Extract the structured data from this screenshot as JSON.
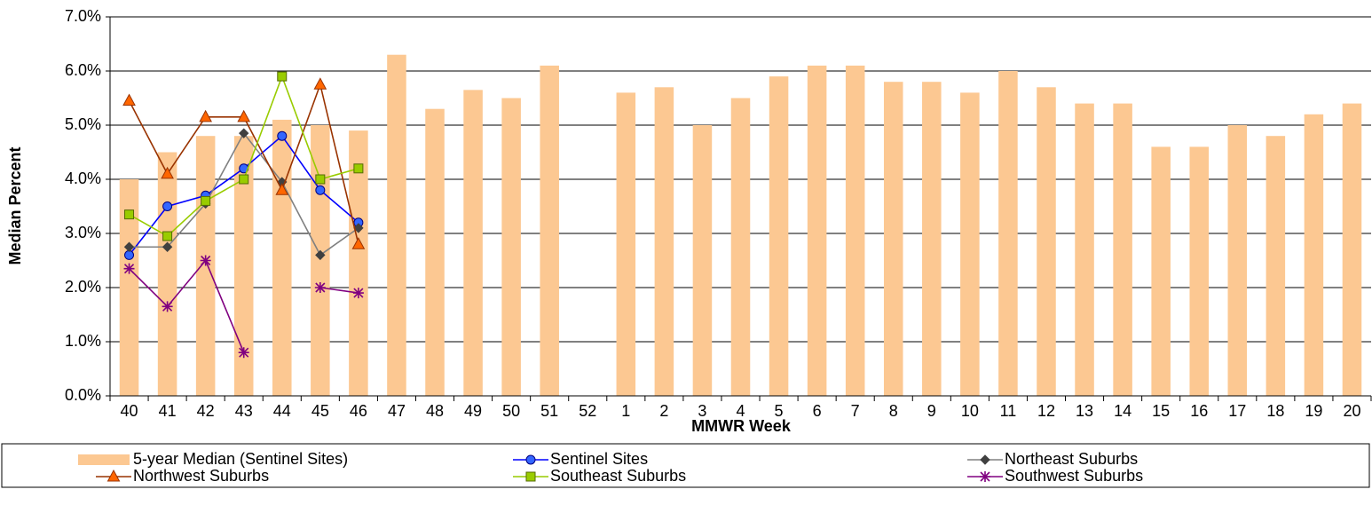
{
  "chart_data": {
    "type": "combo",
    "x_label": "MMWR Week",
    "y_label": "Median Percent",
    "categories": [
      "40",
      "41",
      "42",
      "43",
      "44",
      "45",
      "46",
      "47",
      "48",
      "49",
      "50",
      "51",
      "52",
      "1",
      "2",
      "3",
      "4",
      "5",
      "6",
      "7",
      "8",
      "9",
      "10",
      "11",
      "12",
      "13",
      "14",
      "15",
      "16",
      "17",
      "18",
      "19",
      "20"
    ],
    "ylim": [
      0,
      7
    ],
    "yticks": [
      {
        "value": 0,
        "label": "0.0%"
      },
      {
        "value": 1,
        "label": "1.0%"
      },
      {
        "value": 2,
        "label": "2.0%"
      },
      {
        "value": 3,
        "label": "3.0%"
      },
      {
        "value": 4,
        "label": "4.0%"
      },
      {
        "value": 5,
        "label": "5.0%"
      },
      {
        "value": 6,
        "label": "6.0%"
      },
      {
        "value": 7,
        "label": "7.0%"
      }
    ],
    "grid": true,
    "legend": "bottom",
    "series": [
      {
        "name": "5-year Median (Sentinel Sites)",
        "type": "bar",
        "color": "#fcc892",
        "values": [
          4.0,
          4.5,
          4.8,
          4.8,
          5.1,
          5.0,
          4.9,
          6.3,
          5.3,
          5.65,
          5.5,
          6.1,
          null,
          5.6,
          5.7,
          5.0,
          5.5,
          5.9,
          6.1,
          6.1,
          5.8,
          5.8,
          5.6,
          6.0,
          5.7,
          5.4,
          5.4,
          4.6,
          4.6,
          5.0,
          4.8,
          5.2,
          5.4
        ]
      },
      {
        "name": "Sentinel Sites",
        "type": "line",
        "marker": "circle",
        "color": "#0000ff",
        "marker_color": "#3366ff",
        "values": [
          2.6,
          3.5,
          3.7,
          4.2,
          4.8,
          3.8,
          3.2,
          null,
          null,
          null,
          null,
          null,
          null,
          null,
          null,
          null,
          null,
          null,
          null,
          null,
          null,
          null,
          null,
          null,
          null,
          null,
          null,
          null,
          null,
          null,
          null,
          null,
          null
        ]
      },
      {
        "name": "Northeast Suburbs",
        "type": "line",
        "marker": "diamond",
        "color": "#808080",
        "marker_color": "#404040",
        "values": [
          2.75,
          2.75,
          3.55,
          4.85,
          3.95,
          2.6,
          3.1,
          null,
          null,
          null,
          null,
          null,
          null,
          null,
          null,
          null,
          null,
          null,
          null,
          null,
          null,
          null,
          null,
          null,
          null,
          null,
          null,
          null,
          null,
          null,
          null,
          null,
          null
        ]
      },
      {
        "name": "Northwest Suburbs",
        "type": "line",
        "marker": "triangle",
        "color": "#993300",
        "marker_color": "#ff6600",
        "values": [
          5.45,
          4.1,
          5.15,
          5.15,
          3.8,
          5.75,
          2.8,
          null,
          null,
          null,
          null,
          null,
          null,
          null,
          null,
          null,
          null,
          null,
          null,
          null,
          null,
          null,
          null,
          null,
          null,
          null,
          null,
          null,
          null,
          null,
          null,
          null,
          null
        ]
      },
      {
        "name": "Southeast Suburbs",
        "type": "line",
        "marker": "square",
        "color": "#99cc00",
        "marker_color": "#99cc00",
        "values": [
          3.35,
          2.95,
          3.6,
          4.0,
          5.9,
          4.0,
          4.2,
          null,
          null,
          null,
          null,
          null,
          null,
          null,
          null,
          null,
          null,
          null,
          null,
          null,
          null,
          null,
          null,
          null,
          null,
          null,
          null,
          null,
          null,
          null,
          null,
          null,
          null
        ]
      },
      {
        "name": "Southwest Suburbs",
        "type": "line",
        "marker": "star",
        "color": "#800080",
        "marker_color": "#800080",
        "values": [
          2.35,
          1.65,
          2.5,
          0.8,
          null,
          2.0,
          1.9,
          null,
          null,
          null,
          null,
          null,
          null,
          null,
          null,
          null,
          null,
          null,
          null,
          null,
          null,
          null,
          null,
          null,
          null,
          null,
          null,
          null,
          null,
          null,
          null,
          null,
          null
        ]
      }
    ]
  }
}
